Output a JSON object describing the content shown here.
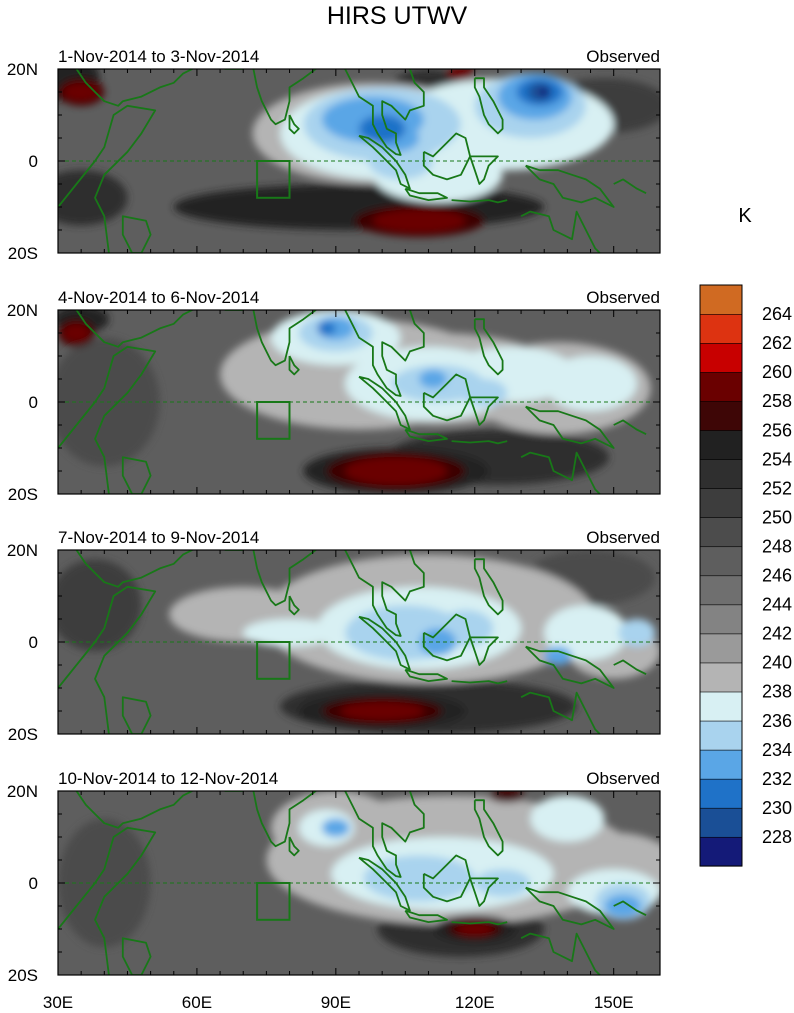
{
  "title": "HIRS UTWV",
  "panels": [
    {
      "date_range": "1-Nov-2014 to 3-Nov-2014",
      "label": "Observed"
    },
    {
      "date_range": "4-Nov-2014 to 6-Nov-2014",
      "label": "Observed"
    },
    {
      "date_range": "7-Nov-2014 to 9-Nov-2014",
      "label": "Observed"
    },
    {
      "date_range": "10-Nov-2014 to 12-Nov-2014",
      "label": "Observed"
    }
  ],
  "lat_labels": [
    "20N",
    "0",
    "20S"
  ],
  "lon_labels": [
    "30E",
    "60E",
    "90E",
    "120E",
    "150E"
  ],
  "colorbar": {
    "unit": "K",
    "levels": [
      228,
      230,
      232,
      234,
      236,
      238,
      240,
      242,
      244,
      246,
      248,
      250,
      252,
      254,
      256,
      258,
      260,
      262,
      264
    ],
    "colors": [
      "#141a78",
      "#1a4f96",
      "#1f72c8",
      "#5aa6e6",
      "#a9d3ee",
      "#d8f0f3",
      "#b4b4b4",
      "#9a9a9a",
      "#838383",
      "#6f6f6f",
      "#5e5e5e",
      "#4c4c4c",
      "#3d3d3d",
      "#2f2f2f",
      "#212121",
      "#3e0606",
      "#6a0000",
      "#c80000",
      "#dd3311",
      "#d06a22"
    ]
  },
  "map_colors": {
    "coast": "#187818",
    "box": "#187818"
  }
}
